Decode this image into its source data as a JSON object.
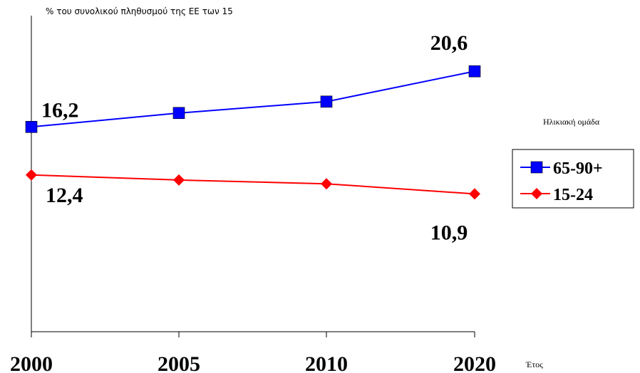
{
  "chart_data": {
    "type": "line",
    "title": "% του συνολικού πληθυσμού της ΕΕ των 15",
    "xlabel": "Έτος",
    "ylabel": "",
    "categories": [
      "2000",
      "2005",
      "2010",
      "2020"
    ],
    "ylim": [
      0,
      25
    ],
    "grid": false,
    "legend_title": "Ηλικιακή ομάδα",
    "legend_position": "right",
    "series": [
      {
        "name": "65-90+",
        "color": "#0000ff",
        "marker": "square",
        "values": [
          16.2,
          17.3,
          18.2,
          20.6
        ]
      },
      {
        "name": "15-24",
        "color": "#ff0000",
        "marker": "diamond",
        "values": [
          12.4,
          12.0,
          11.7,
          10.9
        ]
      }
    ],
    "data_labels": [
      {
        "series": 0,
        "index": 0,
        "text": "16,2"
      },
      {
        "series": 0,
        "index": 3,
        "text": "20,6"
      },
      {
        "series": 1,
        "index": 0,
        "text": "12,4"
      },
      {
        "series": 1,
        "index": 3,
        "text": "10,9"
      }
    ]
  }
}
